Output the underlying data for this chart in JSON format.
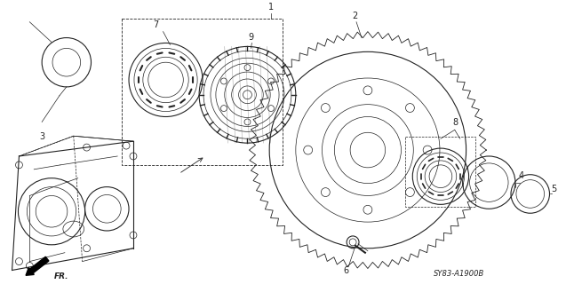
{
  "background_color": "#ffffff",
  "diagram_code": "SY83-A1900B",
  "color": "#222222",
  "lw_thin": 0.5,
  "lw_med": 0.8,
  "lw_thick": 1.1,
  "figsize": [
    6.37,
    3.2
  ],
  "dpi": 100
}
